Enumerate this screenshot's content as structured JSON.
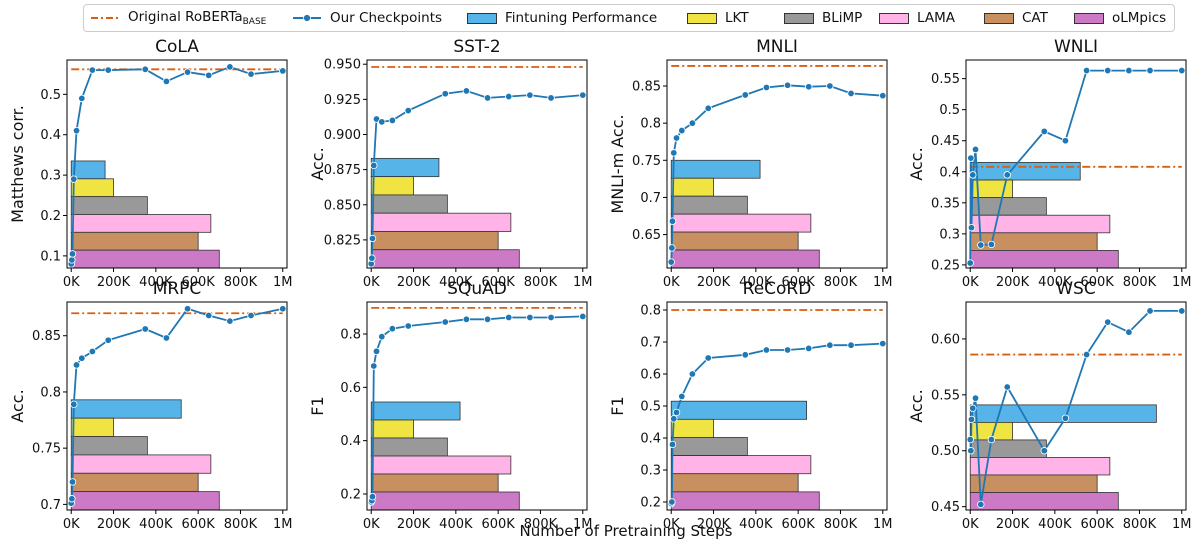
{
  "legend": {
    "original_label": "Original RoBERTa",
    "original_sub": "BASE",
    "checkpoints_label": "Our Checkpoints",
    "finetuning_label": "Fintuning Performance",
    "lkt_label": "LKT",
    "blimp_label": "BLiMP",
    "lama_label": "LAMA",
    "cat_label": "CAT",
    "olmpics_label": "oLMpics"
  },
  "colors": {
    "original": "#d95f0e",
    "checkpoints": "#1f77b4",
    "finetuning": "#56b4e9",
    "lkt": "#f0e442",
    "blimp": "#999999",
    "lama": "#ffb3e6",
    "cat": "#c89060",
    "olmpics": "#cc79c6"
  },
  "shared_xlabel": "Number of Pretraining Steps",
  "chart_data": [
    {
      "type": "line",
      "title": "CoLA",
      "ylabel": "Matthews corr.",
      "xlim": [
        -20000,
        1020000
      ],
      "ylim": [
        0.07,
        0.585
      ],
      "yticks": [
        0.1,
        0.2,
        0.3,
        0.4,
        0.5
      ],
      "xticks": [
        0,
        200000,
        400000,
        600000,
        800000,
        1000000
      ],
      "xtick_labels": [
        "0K",
        "200K",
        "400K",
        "600K",
        "800K",
        "1M"
      ],
      "baseline": 0.562,
      "x": [
        0,
        3000,
        6000,
        12000,
        25000,
        50000,
        100000,
        175000,
        350000,
        450000,
        550000,
        650000,
        750000,
        850000,
        1000000
      ],
      "y": [
        0.08,
        0.09,
        0.105,
        0.29,
        0.41,
        0.49,
        0.56,
        0.56,
        0.562,
        0.532,
        0.555,
        0.547,
        0.568,
        0.55,
        0.558
      ],
      "bars": {
        "finetuning": 160000,
        "lkt": 200000,
        "blimp": 360000,
        "lama": 660000,
        "cat": 600000,
        "olmpics": 700000
      },
      "bar_bottom": 0.07,
      "bar_top": 0.335
    },
    {
      "type": "line",
      "title": "SST-2",
      "ylabel": "Acc.",
      "xlim": [
        -20000,
        1020000
      ],
      "ylim": [
        0.805,
        0.953
      ],
      "yticks": [
        0.825,
        0.85,
        0.875,
        0.9,
        0.925,
        0.95
      ],
      "ytick_labels": [
        "0.825",
        "0.850",
        "0.875",
        "0.900",
        "0.925",
        "0.950"
      ],
      "xticks": [
        0,
        200000,
        400000,
        600000,
        800000,
        1000000
      ],
      "xtick_labels": [
        "0K",
        "200K",
        "400K",
        "600K",
        "800K",
        "1M"
      ],
      "baseline": 0.948,
      "x": [
        0,
        3000,
        6000,
        12000,
        25000,
        50000,
        100000,
        175000,
        350000,
        450000,
        550000,
        650000,
        750000,
        850000,
        1000000
      ],
      "y": [
        0.808,
        0.812,
        0.826,
        0.878,
        0.911,
        0.909,
        0.91,
        0.917,
        0.929,
        0.931,
        0.926,
        0.927,
        0.928,
        0.926,
        0.928
      ],
      "bars": {
        "finetuning": 320000,
        "lkt": 200000,
        "blimp": 360000,
        "lama": 660000,
        "cat": 600000,
        "olmpics": 700000
      },
      "bar_bottom": 0.805,
      "bar_top": 0.883
    },
    {
      "type": "line",
      "title": "MNLI",
      "ylabel": "MNLI-m Acc.",
      "xlim": [
        -20000,
        1020000
      ],
      "ylim": [
        0.605,
        0.885
      ],
      "yticks": [
        0.65,
        0.7,
        0.75,
        0.8,
        0.85
      ],
      "xticks": [
        0,
        200000,
        400000,
        600000,
        800000,
        1000000
      ],
      "xtick_labels": [
        "0K",
        "200K",
        "400K",
        "600K",
        "800K",
        "1M"
      ],
      "baseline": 0.877,
      "x": [
        0,
        3000,
        6000,
        12000,
        25000,
        50000,
        100000,
        175000,
        350000,
        450000,
        550000,
        650000,
        750000,
        850000,
        1000000
      ],
      "y": [
        0.613,
        0.632,
        0.668,
        0.76,
        0.78,
        0.79,
        0.8,
        0.82,
        0.838,
        0.848,
        0.851,
        0.849,
        0.85,
        0.84,
        0.837
      ],
      "bars": {
        "finetuning": 420000,
        "lkt": 200000,
        "blimp": 360000,
        "lama": 660000,
        "cat": 600000,
        "olmpics": 700000
      },
      "bar_bottom": 0.605,
      "bar_top": 0.75
    },
    {
      "type": "line",
      "title": "WNLI",
      "ylabel": "Acc.",
      "xlim": [
        -20000,
        1020000
      ],
      "ylim": [
        0.245,
        0.58
      ],
      "yticks": [
        0.25,
        0.3,
        0.35,
        0.4,
        0.45,
        0.5,
        0.55
      ],
      "xticks": [
        0,
        200000,
        400000,
        600000,
        800000,
        1000000
      ],
      "xtick_labels": [
        "0K",
        "200K",
        "400K",
        "600K",
        "800K",
        "1M"
      ],
      "baseline": 0.408,
      "x": [
        0,
        3000,
        6000,
        12000,
        25000,
        50000,
        100000,
        175000,
        350000,
        450000,
        550000,
        650000,
        750000,
        850000,
        1000000
      ],
      "y": [
        0.253,
        0.422,
        0.31,
        0.395,
        0.436,
        0.282,
        0.283,
        0.395,
        0.465,
        0.45,
        0.563,
        0.563,
        0.563,
        0.563,
        0.563
      ],
      "bars": {
        "finetuning": 520000,
        "lkt": 200000,
        "blimp": 360000,
        "lama": 660000,
        "cat": 600000,
        "olmpics": 700000
      },
      "bar_bottom": 0.245,
      "bar_top": 0.415
    },
    {
      "type": "line",
      "title": "MRPC",
      "ylabel": "Acc.",
      "xlim": [
        -20000,
        1020000
      ],
      "ylim": [
        0.695,
        0.88
      ],
      "yticks": [
        0.7,
        0.75,
        0.8,
        0.85
      ],
      "xticks": [
        0,
        200000,
        400000,
        600000,
        800000,
        1000000
      ],
      "xtick_labels": [
        "0K",
        "200K",
        "400K",
        "600K",
        "800K",
        "1M"
      ],
      "baseline": 0.87,
      "x": [
        0,
        3000,
        6000,
        12000,
        25000,
        50000,
        100000,
        175000,
        350000,
        450000,
        550000,
        650000,
        750000,
        850000,
        1000000
      ],
      "y": [
        0.701,
        0.705,
        0.72,
        0.789,
        0.824,
        0.83,
        0.836,
        0.846,
        0.856,
        0.848,
        0.874,
        0.868,
        0.863,
        0.868,
        0.874
      ],
      "bars": {
        "finetuning": 520000,
        "lkt": 200000,
        "blimp": 360000,
        "lama": 660000,
        "cat": 600000,
        "olmpics": 700000
      },
      "bar_bottom": 0.695,
      "bar_top": 0.793
    },
    {
      "type": "line",
      "title": "SQuAD",
      "ylabel": "F1",
      "xlim": [
        -20000,
        1020000
      ],
      "ylim": [
        0.14,
        0.92
      ],
      "yticks": [
        0.2,
        0.4,
        0.6,
        0.8
      ],
      "xticks": [
        0,
        200000,
        400000,
        600000,
        800000,
        1000000
      ],
      "xtick_labels": [
        "0K",
        "200K",
        "400K",
        "600K",
        "800K",
        "1M"
      ],
      "baseline": 0.898,
      "x": [
        0,
        3000,
        6000,
        12000,
        25000,
        50000,
        100000,
        175000,
        350000,
        450000,
        550000,
        650000,
        750000,
        850000,
        1000000
      ],
      "y": [
        0.17,
        0.175,
        0.19,
        0.68,
        0.735,
        0.79,
        0.82,
        0.83,
        0.845,
        0.855,
        0.855,
        0.862,
        0.862,
        0.862,
        0.866
      ],
      "bars": {
        "finetuning": 420000,
        "lkt": 200000,
        "blimp": 360000,
        "lama": 660000,
        "cat": 600000,
        "olmpics": 700000
      },
      "bar_bottom": 0.14,
      "bar_top": 0.545
    },
    {
      "type": "line",
      "title": "ReCoRD",
      "ylabel": "F1",
      "xlim": [
        -20000,
        1020000
      ],
      "ylim": [
        0.175,
        0.825
      ],
      "yticks": [
        0.2,
        0.3,
        0.4,
        0.5,
        0.6,
        0.7,
        0.8
      ],
      "xticks": [
        0,
        200000,
        400000,
        600000,
        800000,
        1000000
      ],
      "xtick_labels": [
        "0K",
        "200K",
        "400K",
        "600K",
        "800K",
        "1M"
      ],
      "baseline": 0.8,
      "x": [
        0,
        3000,
        6000,
        12000,
        25000,
        50000,
        100000,
        175000,
        350000,
        450000,
        550000,
        650000,
        750000,
        850000,
        1000000
      ],
      "y": [
        0.195,
        0.2,
        0.38,
        0.46,
        0.48,
        0.53,
        0.6,
        0.65,
        0.66,
        0.675,
        0.675,
        0.68,
        0.69,
        0.69,
        0.695
      ],
      "bars": {
        "finetuning": 640000,
        "lkt": 200000,
        "blimp": 360000,
        "lama": 660000,
        "cat": 600000,
        "olmpics": 700000
      },
      "bar_bottom": 0.175,
      "bar_top": 0.515
    },
    {
      "type": "line",
      "title": "WSC",
      "ylabel": "Acc.",
      "xlim": [
        -20000,
        1020000
      ],
      "ylim": [
        0.447,
        0.633
      ],
      "yticks": [
        0.45,
        0.5,
        0.55,
        0.6
      ],
      "ytick_labels": [
        "0.45",
        "0.50",
        "0.55",
        "0.60"
      ],
      "xticks": [
        0,
        200000,
        400000,
        600000,
        800000,
        1000000
      ],
      "xtick_labels": [
        "0K",
        "200K",
        "400K",
        "600K",
        "800K",
        "1M"
      ],
      "baseline": 0.586,
      "x": [
        0,
        3000,
        6000,
        12000,
        25000,
        50000,
        100000,
        175000,
        350000,
        450000,
        550000,
        650000,
        750000,
        850000,
        1000000
      ],
      "y": [
        0.51,
        0.5,
        0.528,
        0.538,
        0.547,
        0.452,
        0.51,
        0.557,
        0.5,
        0.529,
        0.586,
        0.615,
        0.606,
        0.625,
        0.625
      ],
      "bars": {
        "finetuning": 880000,
        "lkt": 200000,
        "blimp": 360000,
        "lama": 660000,
        "cat": 600000,
        "olmpics": 700000
      },
      "bar_bottom": 0.447,
      "bar_top": 0.541
    }
  ]
}
